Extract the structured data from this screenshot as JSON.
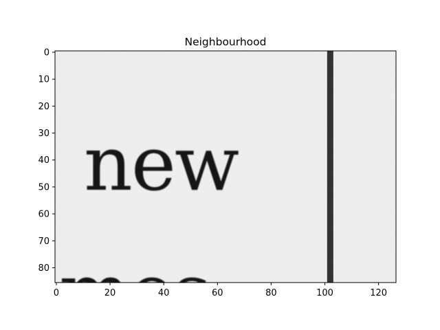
{
  "chart_data": {
    "type": "image",
    "title": "Neighbourhood",
    "xlabel": "",
    "ylabel": "",
    "xlim": [
      -0.5,
      126.5
    ],
    "ylim": [
      85.5,
      -0.5
    ],
    "xticks": [
      0,
      20,
      40,
      60,
      80,
      100,
      120
    ],
    "yticks": [
      0,
      10,
      20,
      30,
      40,
      50,
      60,
      70,
      80
    ],
    "grid": false,
    "colormap": "gray",
    "image_content": {
      "scanned_words": [
        {
          "text": "new"
        },
        {
          "text": "mes-"
        }
      ],
      "vertical_rule_x": 102
    }
  }
}
